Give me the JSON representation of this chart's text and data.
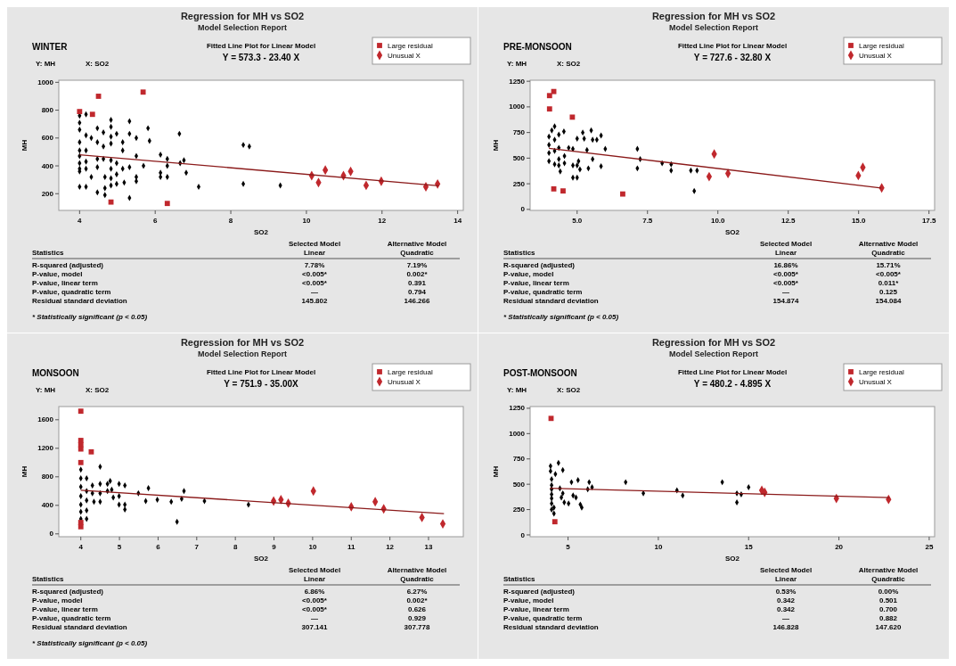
{
  "chart_data": [
    {
      "type": "scatter",
      "title": "Regression for MH vs SO2",
      "subtitle": "Model Selection Report",
      "xlabel": "SO2",
      "ylabel": "MH",
      "xlim": [
        3.45,
        14.15
      ],
      "ylim": [
        80,
        1015
      ],
      "xticks": [
        4,
        6,
        8,
        10,
        12,
        14
      ],
      "yticks": [
        200,
        400,
        600,
        800,
        1000
      ],
      "legend": "top right",
      "annotations": [
        "WINTER",
        "Y: MH",
        "X: SO2",
        "Fitted Line Plot for Linear Model",
        "Y = 573.3 - 23.40 X",
        "Statistics",
        "Selected Model",
        "Linear",
        "Alternative Model",
        "Quadratic",
        "R-squared (adjusted)",
        "7.78%",
        "7.19%",
        "P-value, model",
        "<0.005*",
        "0.002*",
        "P-value, linear term",
        "<0.005*",
        "0.391",
        "P-value, quadratic term",
        "—",
        "0.794",
        "Residual standard deviation",
        "145.802",
        "146.266",
        "* Statistically significant (p < 0.05)"
      ],
      "series": [
        {
          "color": "#000000",
          "marker": "diamond",
          "x": [
            4,
            4,
            4,
            4,
            4,
            4,
            4,
            4,
            4,
            4,
            4.17,
            4.17,
            4.17,
            4.17,
            4.17,
            4.17,
            4.31,
            4.31,
            4.47,
            4.47,
            4.47,
            4.47,
            4.47,
            4.63,
            4.63,
            4.63,
            4.67,
            4.67,
            4.67,
            4.83,
            4.83,
            4.83,
            4.83,
            4.83,
            4.83,
            4.83,
            4.83,
            4.98,
            4.98,
            4.98,
            4.98,
            5.14,
            5.14,
            5.14,
            5.18,
            5.32,
            5.32,
            5.32,
            5.32,
            5.5,
            5.5,
            5.5,
            5.5,
            5.69,
            5.81,
            5.85,
            6.14,
            6.14,
            6.14,
            6.32,
            6.32,
            6.32,
            6.64,
            6.66,
            6.76,
            6.82,
            7.15,
            8.33,
            8.49,
            8.33,
            9.31
          ],
          "values": [
            760,
            710,
            660,
            570,
            510,
            470,
            420,
            380,
            360,
            250,
            250,
            770,
            620,
            510,
            430,
            380,
            600,
            320,
            670,
            570,
            450,
            390,
            210,
            640,
            540,
            450,
            320,
            240,
            190,
            730,
            680,
            610,
            560,
            440,
            380,
            310,
            260,
            630,
            420,
            340,
            270,
            570,
            510,
            380,
            280,
            720,
            630,
            390,
            170,
            600,
            470,
            320,
            290,
            400,
            670,
            580,
            480,
            350,
            320,
            450,
            400,
            320,
            630,
            420,
            440,
            350,
            250,
            550,
            540,
            270,
            260
          ]
        },
        {
          "name": "Large residual",
          "color": "#c0282d",
          "marker": "square",
          "x": [
            4,
            4.5,
            4.34,
            5.68,
            4.83,
            6.32
          ],
          "values": [
            790,
            900,
            770,
            930,
            140,
            130
          ]
        },
        {
          "name": "Unusual X",
          "color": "#c0282d",
          "marker": "diamond",
          "x": [
            10.14,
            10.32,
            10.5,
            10.98,
            11.17,
            11.58,
            11.98,
            13.16,
            13.47
          ],
          "values": [
            330,
            280,
            370,
            330,
            360,
            260,
            290,
            250,
            270
          ]
        },
        {
          "type": "line",
          "color": "#8b1a1a",
          "marker": "none",
          "x": [
            4,
            13.5
          ],
          "values": [
            480,
            257
          ]
        }
      ]
    },
    {
      "type": "scatter",
      "title": "Regression for MH vs SO2",
      "subtitle": "Model Selection Report",
      "xlabel": "SO2",
      "ylabel": "MH",
      "xlim": [
        3.33,
        17.7
      ],
      "ylim": [
        -10,
        1260
      ],
      "xticks": [
        {
          "value": 5,
          "label": "5.0"
        },
        7.5,
        {
          "value": 10,
          "label": "10.0"
        },
        12.5,
        {
          "value": 15,
          "label": "15.0"
        },
        17.5
      ],
      "yticks": [
        0,
        250,
        500,
        750,
        1000,
        1250
      ],
      "legend": "top right",
      "annotations": [
        "PRE-MONSOON",
        "Y: MH",
        "X: SO2",
        "Fitted Line Plot for Linear Model",
        "Y = 727.6 - 32.80 X",
        "Statistics",
        "Selected Model",
        "Linear",
        "Alternative Model",
        "Quadratic",
        "R-squared (adjusted)",
        "16.86%",
        "15.71%",
        "P-value, model",
        "<0.005*",
        "<0.005*",
        "P-value, linear term",
        "<0.005*",
        "0.011*",
        "P-value, quadratic term",
        "—",
        "0.125",
        "Residual standard deviation",
        "154.874",
        "154.084",
        "* Statistically significant (p < 0.05)"
      ],
      "series": [
        {
          "color": "#000000",
          "marker": "diamond",
          "x": [
            4,
            4,
            4,
            4,
            4.1,
            4.2,
            4.2,
            4.2,
            4.2,
            4.35,
            4.35,
            4.35,
            4.35,
            4.4,
            4.55,
            4.55,
            4.53,
            4.7,
            4.85,
            4.85,
            4.85,
            5,
            5,
            5,
            5.05,
            5.2,
            5.1,
            5.25,
            5.35,
            5.4,
            5.5,
            5.55,
            5.55,
            5.7,
            5.85,
            5.85,
            6,
            7.14,
            7.14,
            7.24,
            8.02,
            8.34,
            8.34,
            9.04,
            9.26,
            9.16
          ],
          "values": [
            710,
            630,
            550,
            470,
            770,
            810,
            680,
            570,
            440,
            730,
            600,
            490,
            430,
            370,
            520,
            450,
            760,
            600,
            590,
            430,
            310,
            310,
            690,
            430,
            470,
            750,
            390,
            690,
            580,
            400,
            770,
            680,
            490,
            680,
            720,
            420,
            590,
            590,
            400,
            490,
            450,
            440,
            380,
            380,
            380,
            180
          ]
        },
        {
          "name": "Large residual",
          "color": "#c0282d",
          "marker": "square",
          "x": [
            4.02,
            4.17,
            4.02,
            4.83,
            4.17,
            4.5,
            6.62
          ],
          "values": [
            1110,
            1150,
            980,
            900,
            200,
            180,
            150
          ]
        },
        {
          "name": "Unusual X",
          "color": "#c0282d",
          "marker": "diamond",
          "x": [
            9.87,
            9.69,
            10.36,
            15.15,
            14.99,
            15.82
          ],
          "values": [
            540,
            320,
            350,
            410,
            330,
            210
          ]
        },
        {
          "type": "line",
          "color": "#8b1a1a",
          "marker": "none",
          "x": [
            4,
            15.8
          ],
          "values": [
            596,
            209
          ]
        }
      ]
    },
    {
      "type": "scatter",
      "title": "Regression for MH vs SO2",
      "subtitle": "Model Selection Report",
      "xlabel": "SO2",
      "ylabel": "MH",
      "xlim": [
        3.43,
        13.9
      ],
      "ylim": [
        -40,
        1785
      ],
      "xticks": [
        4,
        5,
        6,
        7,
        8,
        9,
        10,
        11,
        12,
        13
      ],
      "yticks": [
        0,
        400,
        800,
        1200,
        1600
      ],
      "legend": "top right",
      "annotations": [
        "MONSOON",
        "Y: MH",
        "X: SO2",
        "Fitted Line Plot for Linear Model",
        "Y = 751.9 - 35.00X",
        "Statistics",
        "Selected Model",
        "Linear",
        "Alternative Model",
        "Quadratic",
        "R-squared (adjusted)",
        "6.86%",
        "6.27%",
        "P-value, model",
        "<0.005*",
        "0.002*",
        "P-value, linear term",
        "<0.005*",
        "0.626",
        "P-value, quadratic term",
        "—",
        "0.929",
        "Residual standard deviation",
        "307.141",
        "307.778",
        "* Statistically significant (p < 0.05)"
      ],
      "series": [
        {
          "color": "#000000",
          "marker": "diamond",
          "x": [
            4,
            4,
            4,
            4,
            4,
            4,
            4,
            4.15,
            4.15,
            4.15,
            4.15,
            4.15,
            4.3,
            4.3,
            4.34,
            4.5,
            4.5,
            4.5,
            4.5,
            4.69,
            4.69,
            4.76,
            4.8,
            4.84,
            4.99,
            4.99,
            4.99,
            5.14,
            5.14,
            5.14,
            5.49,
            5.75,
            5.68,
            5.98,
            6.34,
            6.49,
            6.61,
            6.67,
            7.2,
            8.34
          ],
          "values": [
            900,
            780,
            660,
            530,
            410,
            310,
            210,
            780,
            600,
            470,
            330,
            210,
            680,
            570,
            450,
            940,
            700,
            570,
            450,
            700,
            600,
            740,
            620,
            510,
            700,
            530,
            410,
            680,
            410,
            340,
            570,
            640,
            460,
            480,
            450,
            170,
            490,
            600,
            460,
            410
          ]
        },
        {
          "name": "Large residual",
          "color": "#c0282d",
          "marker": "square",
          "x": [
            4,
            4,
            4,
            4,
            4.27,
            4,
            4,
            4
          ],
          "values": [
            1720,
            1310,
            1250,
            1190,
            1150,
            1000,
            160,
            100
          ]
        },
        {
          "name": "Unusual X",
          "color": "#c0282d",
          "marker": "diamond",
          "x": [
            8.99,
            9.18,
            9.37,
            10.02,
            11,
            11.62,
            11.84,
            12.83,
            13.37
          ],
          "values": [
            460,
            480,
            430,
            600,
            380,
            450,
            350,
            230,
            140
          ]
        },
        {
          "type": "line",
          "color": "#8b1a1a",
          "marker": "none",
          "x": [
            4,
            13.4
          ],
          "values": [
            612,
            283
          ]
        }
      ]
    },
    {
      "type": "scatter",
      "title": "Regression for MH vs SO2",
      "subtitle": "Model Selection Report",
      "xlabel": "SO2",
      "ylabel": "MH",
      "xlim": [
        2.9,
        25.3
      ],
      "ylim": [
        -18,
        1267
      ],
      "xticks": [
        5,
        10,
        15,
        20,
        25
      ],
      "yticks": [
        0,
        250,
        500,
        750,
        1000,
        1250
      ],
      "legend": "top right",
      "annotations": [
        "POST-MONSOON",
        "Y: MH",
        "X: SO2",
        "Fitted Line Plot for Linear Model",
        "Y = 480.2 - 4.895 X",
        "Statistics",
        "Selected Model",
        "Linear",
        "Alternative Model",
        "Quadratic",
        "R-squared (adjusted)",
        "0.53%",
        "0.00%",
        "P-value, model",
        "0.342",
        "0.501",
        "P-value, linear term",
        "0.342",
        "0.700",
        "P-value, quadratic term",
        "—",
        "0.882",
        "Residual standard deviation",
        "146.828",
        "147.620"
      ],
      "series": [
        {
          "color": "#000000",
          "marker": "diamond",
          "x": [
            4.03,
            4.03,
            4.09,
            4.09,
            4.09,
            4.09,
            4.09,
            4.09,
            4.09,
            4.22,
            4.22,
            4.3,
            4.47,
            4.55,
            4.63,
            4.71,
            4.71,
            4.79,
            5.03,
            5.19,
            5.28,
            5.44,
            5.55,
            5.68,
            5.76,
            6.09,
            6.17,
            6.33,
            8.19,
            9.17,
            11.03,
            11.35,
            13.54,
            14.35,
            14.35,
            14.59,
            15
          ],
          "values": [
            680,
            630,
            550,
            490,
            450,
            400,
            360,
            310,
            250,
            210,
            270,
            600,
            710,
            460,
            370,
            640,
            410,
            320,
            310,
            520,
            390,
            370,
            540,
            300,
            270,
            450,
            520,
            470,
            520,
            410,
            440,
            390,
            520,
            320,
            410,
            400,
            470
          ]
        },
        {
          "name": "Large residual",
          "color": "#c0282d",
          "marker": "square",
          "x": [
            4.06,
            4.27
          ],
          "values": [
            1150,
            130
          ]
        },
        {
          "name": "Unusual X",
          "color": "#c0282d",
          "marker": "diamond",
          "x": [
            15.73,
            15.89,
            19.86,
            22.75
          ],
          "values": [
            440,
            420,
            360,
            350
          ]
        },
        {
          "type": "line",
          "color": "#8b1a1a",
          "marker": "none",
          "x": [
            4,
            22.8
          ],
          "values": [
            461,
            369
          ]
        }
      ]
    }
  ]
}
